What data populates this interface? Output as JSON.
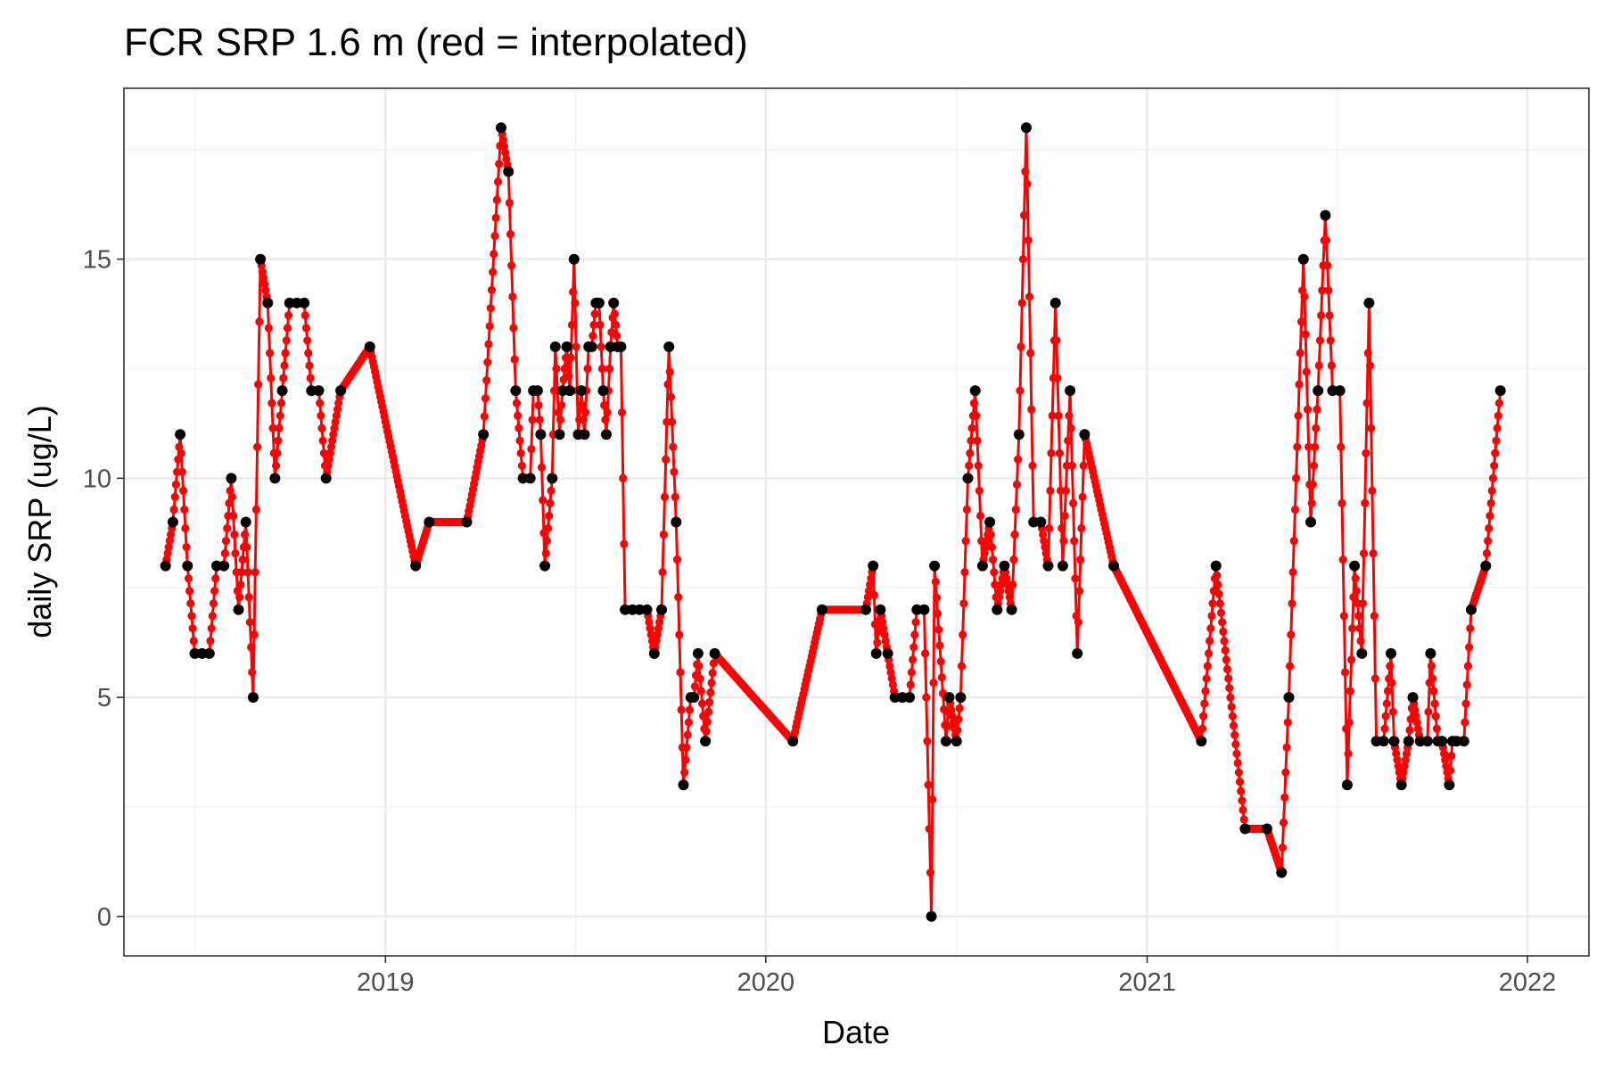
{
  "chart_data": {
    "type": "line",
    "title": "FCR SRP 1.6 m (red = interpolated)",
    "xlabel": "Date",
    "ylabel": "daily SRP (ug/L)",
    "xlim": [
      "2018-04-25",
      "2022-03-01"
    ],
    "ylim": [
      -0.9,
      18.9
    ],
    "x_ticks": [
      "2019-01-01",
      "2020-01-01",
      "2021-01-01",
      "2022-01-01"
    ],
    "x_tick_labels": [
      "2019",
      "2020",
      "2021",
      "2022"
    ],
    "y_ticks": [
      0,
      5,
      10,
      15
    ],
    "y_tick_labels": [
      "0",
      "5",
      "10",
      "15"
    ],
    "grid": true,
    "legend": "none",
    "colors": {
      "interpolated": "#ff0000",
      "observed": "#000000",
      "panel_border": "#333333",
      "grid": "#ebebeb"
    },
    "series": [
      {
        "kind": "observed",
        "color": "#000000",
        "points": [
          [
            "2018-06-04",
            8
          ],
          [
            "2018-06-11",
            9
          ],
          [
            "2018-06-18",
            11
          ],
          [
            "2018-06-25",
            8
          ],
          [
            "2018-07-02",
            6
          ],
          [
            "2018-07-09",
            6
          ],
          [
            "2018-07-16",
            6
          ],
          [
            "2018-07-23",
            8
          ],
          [
            "2018-07-30",
            8
          ],
          [
            "2018-08-06",
            10
          ],
          [
            "2018-08-13",
            7
          ],
          [
            "2018-08-20",
            9
          ],
          [
            "2018-08-27",
            5
          ],
          [
            "2018-09-03",
            15
          ],
          [
            "2018-09-10",
            14
          ],
          [
            "2018-09-17",
            10
          ],
          [
            "2018-09-24",
            12
          ],
          [
            "2018-10-01",
            14
          ],
          [
            "2018-10-08",
            14
          ],
          [
            "2018-10-15",
            14
          ],
          [
            "2018-10-22",
            12
          ],
          [
            "2018-10-29",
            12
          ],
          [
            "2018-11-05",
            10
          ],
          [
            "2018-11-19",
            12
          ],
          [
            "2018-12-17",
            13
          ],
          [
            "2019-01-30",
            8
          ],
          [
            "2019-02-12",
            9
          ],
          [
            "2019-03-20",
            9
          ],
          [
            "2019-04-05",
            11
          ],
          [
            "2019-04-22",
            18
          ],
          [
            "2019-04-29",
            17
          ],
          [
            "2019-05-06",
            12
          ],
          [
            "2019-05-13",
            10
          ],
          [
            "2019-05-20",
            10
          ],
          [
            "2019-05-23",
            12
          ],
          [
            "2019-05-27",
            12
          ],
          [
            "2019-05-30",
            11
          ],
          [
            "2019-06-03",
            8
          ],
          [
            "2019-06-10",
            10
          ],
          [
            "2019-06-13",
            13
          ],
          [
            "2019-06-17",
            11
          ],
          [
            "2019-06-20",
            12
          ],
          [
            "2019-06-24",
            13
          ],
          [
            "2019-06-27",
            12
          ],
          [
            "2019-07-01",
            15
          ],
          [
            "2019-07-05",
            11
          ],
          [
            "2019-07-08",
            12
          ],
          [
            "2019-07-11",
            11
          ],
          [
            "2019-07-15",
            13
          ],
          [
            "2019-07-18",
            13
          ],
          [
            "2019-07-22",
            14
          ],
          [
            "2019-07-25",
            14
          ],
          [
            "2019-07-29",
            12
          ],
          [
            "2019-08-01",
            11
          ],
          [
            "2019-08-05",
            13
          ],
          [
            "2019-08-08",
            14
          ],
          [
            "2019-08-12",
            13
          ],
          [
            "2019-08-15",
            13
          ],
          [
            "2019-08-19",
            7
          ],
          [
            "2019-08-26",
            7
          ],
          [
            "2019-09-02",
            7
          ],
          [
            "2019-09-09",
            7
          ],
          [
            "2019-09-16",
            6
          ],
          [
            "2019-09-23",
            7
          ],
          [
            "2019-09-30",
            13
          ],
          [
            "2019-10-07",
            9
          ],
          [
            "2019-10-14",
            3
          ],
          [
            "2019-10-21",
            5
          ],
          [
            "2019-10-24",
            5
          ],
          [
            "2019-10-28",
            6
          ],
          [
            "2019-11-04",
            4
          ],
          [
            "2019-11-13",
            6
          ],
          [
            "2020-01-27",
            4
          ],
          [
            "2020-02-24",
            7
          ],
          [
            "2020-04-06",
            7
          ],
          [
            "2020-04-13",
            8
          ],
          [
            "2020-04-16",
            6
          ],
          [
            "2020-04-20",
            7
          ],
          [
            "2020-04-27",
            6
          ],
          [
            "2020-05-04",
            5
          ],
          [
            "2020-05-11",
            5
          ],
          [
            "2020-05-18",
            5
          ],
          [
            "2020-05-25",
            7
          ],
          [
            "2020-06-01",
            7
          ],
          [
            "2020-06-08",
            0
          ],
          [
            "2020-06-11",
            8
          ],
          [
            "2020-06-22",
            4
          ],
          [
            "2020-06-25",
            5
          ],
          [
            "2020-07-02",
            4
          ],
          [
            "2020-07-06",
            5
          ],
          [
            "2020-07-13",
            10
          ],
          [
            "2020-07-20",
            12
          ],
          [
            "2020-07-27",
            8
          ],
          [
            "2020-08-03",
            9
          ],
          [
            "2020-08-10",
            7
          ],
          [
            "2020-08-17",
            8
          ],
          [
            "2020-08-24",
            7
          ],
          [
            "2020-08-31",
            11
          ],
          [
            "2020-09-07",
            18
          ],
          [
            "2020-09-14",
            9
          ],
          [
            "2020-09-21",
            9
          ],
          [
            "2020-09-28",
            8
          ],
          [
            "2020-10-05",
            14
          ],
          [
            "2020-10-12",
            8
          ],
          [
            "2020-10-19",
            12
          ],
          [
            "2020-10-26",
            6
          ],
          [
            "2020-11-02",
            11
          ],
          [
            "2020-11-30",
            8
          ],
          [
            "2021-02-22",
            4
          ],
          [
            "2021-03-08",
            8
          ],
          [
            "2021-04-05",
            2
          ],
          [
            "2021-04-26",
            2
          ],
          [
            "2021-05-10",
            1
          ],
          [
            "2021-05-17",
            5
          ],
          [
            "2021-05-31",
            15
          ],
          [
            "2021-06-07",
            9
          ],
          [
            "2021-06-14",
            12
          ],
          [
            "2021-06-21",
            16
          ],
          [
            "2021-06-28",
            12
          ],
          [
            "2021-07-05",
            12
          ],
          [
            "2021-07-12",
            3
          ],
          [
            "2021-07-19",
            8
          ],
          [
            "2021-07-26",
            6
          ],
          [
            "2021-08-02",
            14
          ],
          [
            "2021-08-09",
            4
          ],
          [
            "2021-08-16",
            4
          ],
          [
            "2021-08-23",
            6
          ],
          [
            "2021-08-26",
            4
          ],
          [
            "2021-09-02",
            3
          ],
          [
            "2021-09-09",
            4
          ],
          [
            "2021-09-13",
            5
          ],
          [
            "2021-09-20",
            4
          ],
          [
            "2021-09-27",
            4
          ],
          [
            "2021-09-30",
            6
          ],
          [
            "2021-10-07",
            4
          ],
          [
            "2021-10-11",
            4
          ],
          [
            "2021-10-18",
            3
          ],
          [
            "2021-10-21",
            4
          ],
          [
            "2021-10-25",
            4
          ],
          [
            "2021-11-01",
            4
          ],
          [
            "2021-11-08",
            7
          ],
          [
            "2021-11-22",
            8
          ],
          [
            "2021-12-06",
            12
          ]
        ]
      },
      {
        "kind": "interpolated",
        "color": "#ff0000",
        "resolution": "daily",
        "range": [
          "2018-06-04",
          "2021-12-06"
        ]
      }
    ]
  }
}
